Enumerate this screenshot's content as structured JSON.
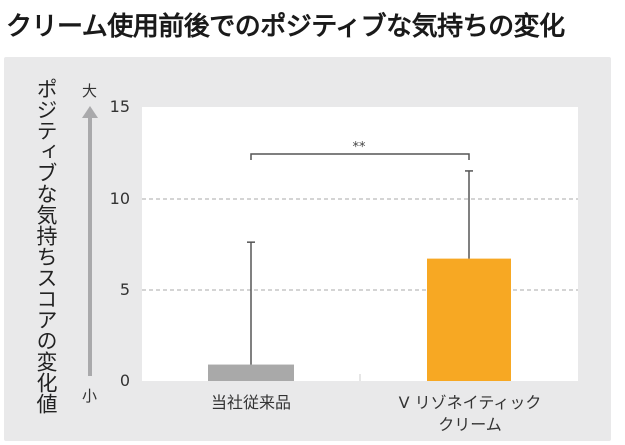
{
  "title": "クリーム使用前後でのポジティブな気持ちの変化",
  "y_axis": {
    "label": "ポジティブな気持ちスコアの変化値",
    "top_marker": "大",
    "bottom_marker": "小",
    "ticks": [
      "15",
      "10",
      "5",
      "0"
    ]
  },
  "x_axis": {
    "labels": [
      "当社従来品",
      "V リゾネイティック\nクリーム"
    ],
    "label_line1": [
      "当社従来品",
      "V リゾネイティック"
    ],
    "label_line2": [
      "",
      "クリーム"
    ]
  },
  "significance": "**",
  "colors": {
    "bar_conventional": "#a9a9a9",
    "bar_v": "#f7a823",
    "error_bar": "#555555",
    "grid": "#aaaaaa",
    "panel": "#e9e9ea"
  },
  "chart_data": {
    "type": "bar",
    "title": "クリーム使用前後でのポジティブな気持ちの変化",
    "categories": [
      "当社従来品",
      "V リゾネイティック クリーム"
    ],
    "values": [
      0.9,
      6.7
    ],
    "error_upper": [
      7.6,
      11.5
    ],
    "xlabel": "",
    "ylabel": "ポジティブな気持ちスコアの変化値",
    "ylim": [
      0,
      15
    ],
    "yticks": [
      0,
      5,
      10,
      15
    ],
    "grid": "horizontal dashed at 5 and 10",
    "annotations": [
      {
        "type": "significance_bracket",
        "between": [
          "当社従来品",
          "V リゾネイティック クリーム"
        ],
        "text": "**"
      },
      {
        "type": "axis_arrow",
        "top": "大",
        "bottom": "小"
      }
    ],
    "legend": null
  }
}
